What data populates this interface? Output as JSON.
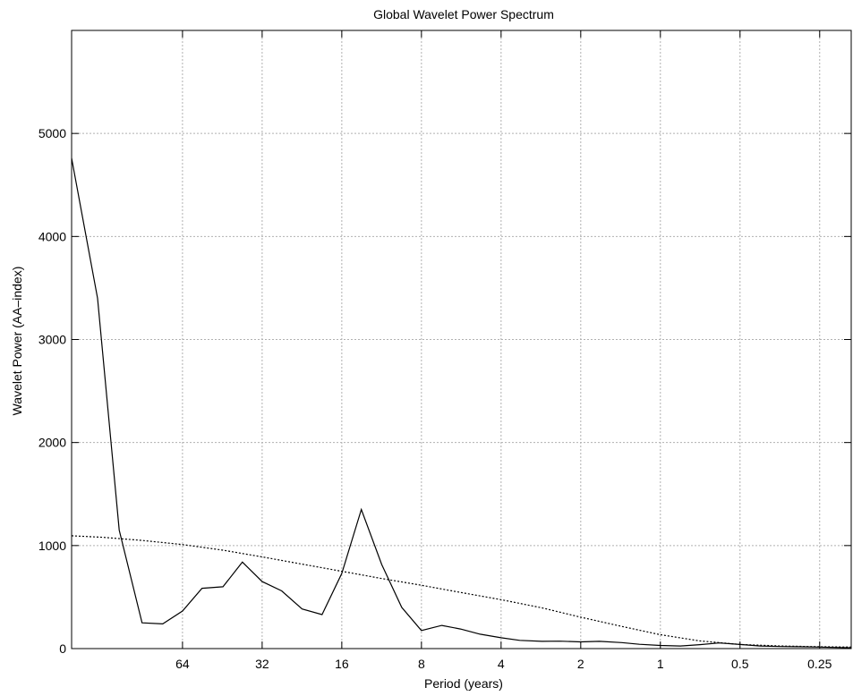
{
  "chart_data": {
    "type": "line",
    "title": "Global Wavelet Power Spectrum",
    "xlabel": "Period (years)",
    "ylabel": "Wavelet Power (AA–index)",
    "x_scale": "log2-reversed",
    "xlim": [
      168,
      0.19
    ],
    "ylim": [
      0,
      6000
    ],
    "x_ticks": [
      64,
      32,
      16,
      8,
      4,
      2,
      1,
      0.5,
      0.25
    ],
    "x_tick_labels": [
      "64",
      "32",
      "16",
      "8",
      "4",
      "2",
      "1",
      "0.5",
      "0.25"
    ],
    "y_ticks": [
      0,
      1000,
      2000,
      3000,
      4000,
      5000
    ],
    "y_tick_labels": [
      "0",
      "1000",
      "2000",
      "3000",
      "4000",
      "5000"
    ],
    "grid": true,
    "legend": "none",
    "colors": {
      "line": "#000000",
      "grid": "#b0b0b0",
      "frame": "#000000"
    },
    "series": [
      {
        "style": "solid",
        "x": [
          168,
          134,
          111,
          91,
          76,
          64,
          54,
          45,
          38,
          32,
          27,
          22.6,
          19,
          16,
          13.5,
          11.3,
          9.5,
          8,
          6.7,
          5.7,
          4.8,
          4,
          3.4,
          2.8,
          2.4,
          2,
          1.7,
          1.4,
          1.2,
          1,
          0.84,
          0.71,
          0.6,
          0.5,
          0.42,
          0.35,
          0.3,
          0.25,
          0.21,
          0.19
        ],
        "values": [
          4760,
          3400,
          1150,
          250,
          240,
          365,
          585,
          600,
          840,
          650,
          560,
          385,
          330,
          730,
          1350,
          815,
          400,
          175,
          225,
          190,
          140,
          105,
          80,
          70,
          72,
          65,
          70,
          58,
          42,
          30,
          25,
          38,
          55,
          40,
          25,
          20,
          18,
          15,
          10,
          8
        ]
      },
      {
        "style": "dashed",
        "x": [
          168,
          128,
          91,
          64,
          45,
          32,
          22.6,
          16,
          11.3,
          8,
          5.7,
          4,
          2.8,
          2,
          1.4,
          1,
          0.71,
          0.5,
          0.35,
          0.25,
          0.19
        ],
        "values": [
          1095,
          1080,
          1050,
          1010,
          955,
          890,
          820,
          750,
          680,
          615,
          545,
          475,
          395,
          305,
          215,
          135,
          75,
          40,
          25,
          18,
          15
        ]
      }
    ]
  }
}
